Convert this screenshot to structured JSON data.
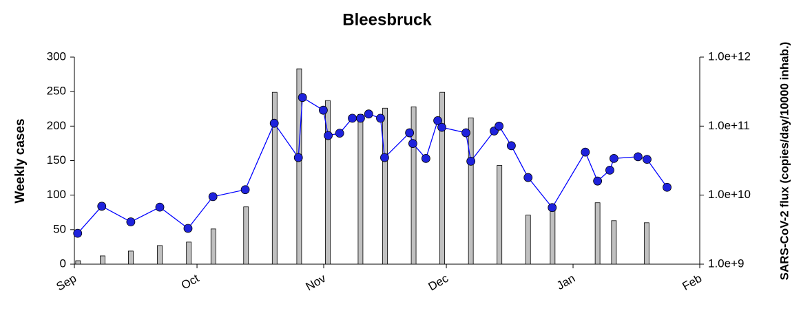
{
  "chart_data": {
    "type": "bar-line",
    "title": "Bleesbruck",
    "ylabel": "Weekly cases",
    "y2label": "SARS-CoV-2 flux (copies/day/10000 inhab.)",
    "xlim": [
      0,
      153
    ],
    "xticks": [
      {
        "value": 0,
        "label": "Sep"
      },
      {
        "value": 30,
        "label": "Oct"
      },
      {
        "value": 61,
        "label": "Nov"
      },
      {
        "value": 91,
        "label": "Dec"
      },
      {
        "value": 122,
        "label": "Jan"
      },
      {
        "value": 153,
        "label": "Feb"
      }
    ],
    "ylim": [
      0,
      300
    ],
    "yticks": [
      0,
      50,
      100,
      150,
      200,
      250,
      300
    ],
    "y2lim": [
      1000000000,
      1000000000000
    ],
    "y2log": true,
    "y2ticks": [
      {
        "value": 1000000000,
        "label": "1.0e+9"
      },
      {
        "value": 10000000000,
        "label": "1.0e+10"
      },
      {
        "value": 100000000000,
        "label": "1.0e+11"
      },
      {
        "value": 1000000000000,
        "label": "1.0e+12"
      }
    ],
    "series": [
      {
        "type": "bar",
        "color": "#c0c0c0",
        "x": [
          0.9,
          6.9,
          13.8,
          20.9,
          28,
          34,
          42,
          49,
          55,
          62,
          70,
          76,
          83,
          90,
          97,
          104,
          111,
          117,
          128,
          132,
          140
        ],
        "values": [
          5,
          12,
          19,
          27,
          32,
          51,
          83,
          249,
          283,
          237,
          217,
          226,
          228,
          249,
          212,
          143,
          71,
          78,
          89,
          63,
          60
        ]
      },
      {
        "type": "line",
        "axis": "y2",
        "color": "#0000ff",
        "marker_color": "#1e22dc",
        "x": [
          0.8,
          6.7,
          13.8,
          20.9,
          27.8,
          33.9,
          41.8,
          48.9,
          54.8,
          55.8,
          60.9,
          62.1,
          64.9,
          68,
          70,
          72,
          74.9,
          75.9,
          82,
          82.8,
          86,
          88.9,
          89.9,
          95.8,
          97,
          102.7,
          103.9,
          106.9,
          111,
          116.9,
          125,
          128,
          131,
          132,
          137.9,
          140.1,
          145
        ],
        "values": [
          2800000000,
          6900000000,
          4100000000,
          6700000000,
          3300000000,
          9500000000,
          12000000000,
          110000000000,
          35000000000,
          260000000000,
          170000000000,
          73000000000,
          79000000000,
          130000000000,
          130000000000,
          150000000000,
          130000000000,
          35000000000,
          80000000000,
          56000000000,
          34000000000,
          120000000000,
          96000000000,
          80000000000,
          31000000000,
          85000000000,
          100000000000,
          52000000000,
          18000000000,
          6600000000,
          42000000000,
          16000000000,
          23000000000,
          34000000000,
          36000000000,
          33000000000,
          13000000000
        ]
      }
    ]
  }
}
